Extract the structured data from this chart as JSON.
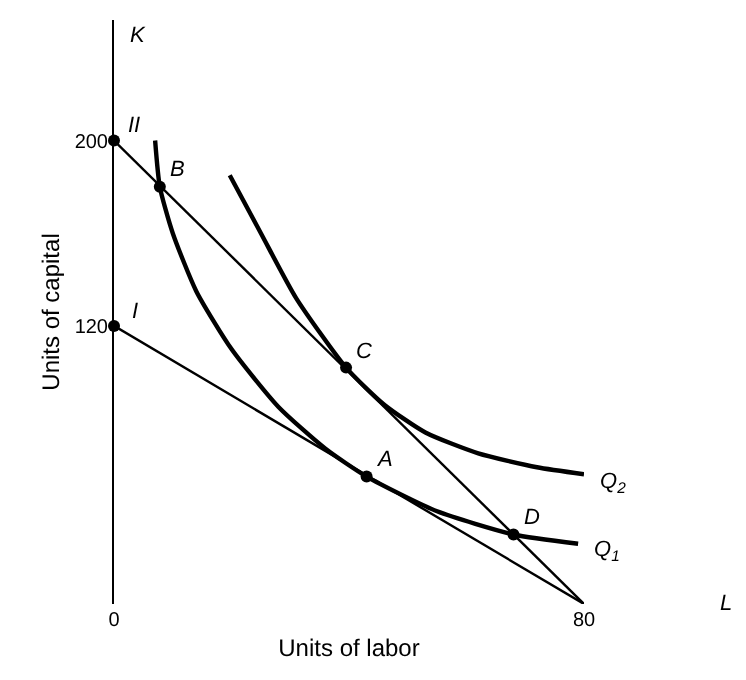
{
  "chart_data": {
    "type": "line",
    "xlabel": "Units of labor",
    "ylabel": "Units of capital",
    "xlim": [
      0,
      80
    ],
    "ylim": [
      0,
      252
    ],
    "xticks": [
      0,
      80
    ],
    "yticks": [
      120,
      200
    ],
    "marker": "none",
    "line_style": "solid",
    "series": [
      {
        "name": "I",
        "color": "#000000",
        "x": [
          0,
          80
        ],
        "values": [
          120,
          0
        ]
      },
      {
        "name": "II",
        "color": "#000000",
        "x": [
          0,
          80
        ],
        "values": [
          200,
          0
        ]
      },
      {
        "name": "Q$_{1}$",
        "color": "#000000",
        "x": [
          7,
          7.8,
          10,
          14,
          20,
          28,
          36,
          43,
          55,
          68,
          79
        ],
        "values": [
          200,
          180,
          160,
          135,
          110,
          85,
          67,
          55,
          40,
          30,
          26
        ]
      },
      {
        "name": "Q$_{2}$",
        "color": "#000000",
        "x": [
          19.7,
          25,
          31,
          39.5,
          46,
          53,
          62,
          72,
          80
        ],
        "values": [
          185,
          160,
          132,
          102,
          86,
          74,
          65,
          59,
          56
        ]
      },
      {
        "type": "scatter",
        "marker": "circle",
        "color": "#000000",
        "x": [
          0,
          0,
          7.8,
          39.5,
          43,
          68
        ],
        "values": [
          120,
          200,
          180,
          102,
          55,
          30
        ]
      }
    ],
    "annotations": [
      {
        "text": "A",
        "x": 43,
        "y": 55
      },
      {
        "text": "B",
        "x": 7.8,
        "y": 180
      },
      {
        "text": "C",
        "x": 39.5,
        "y": 102
      },
      {
        "text": "D",
        "x": 68,
        "y": 30
      },
      "K",
      "L"
    ]
  }
}
